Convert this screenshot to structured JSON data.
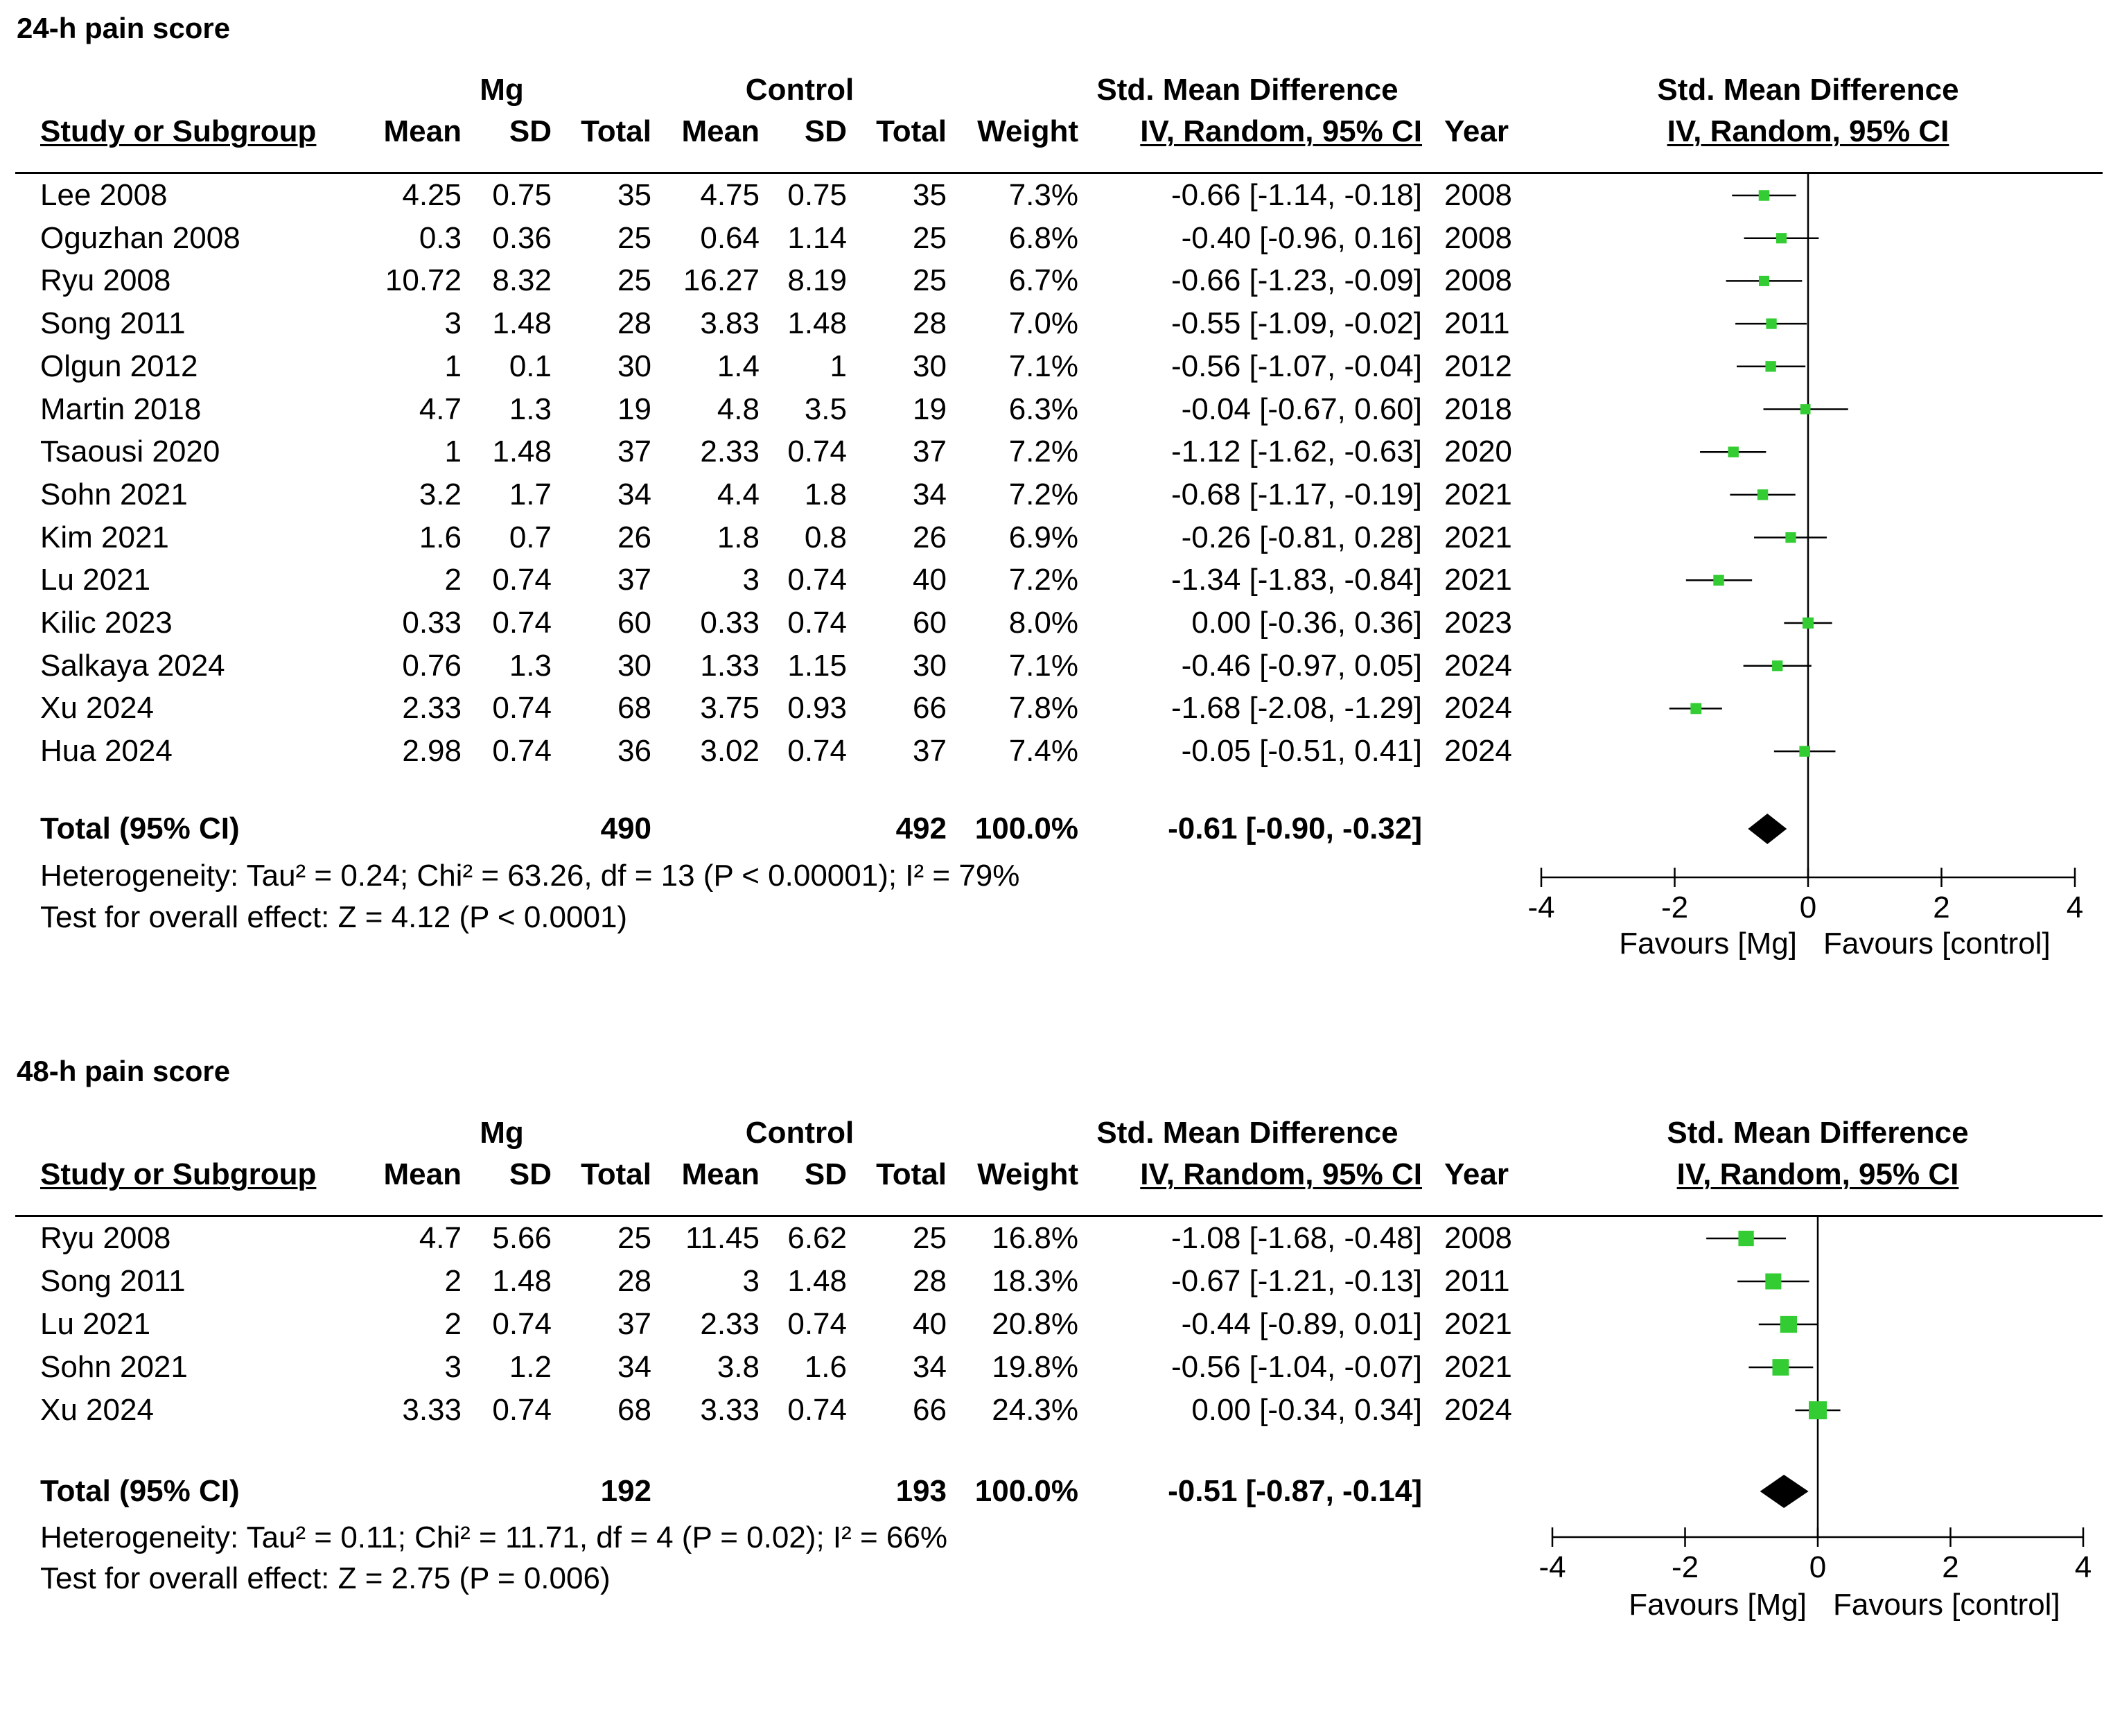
{
  "chart_data": [
    {
      "type": "forest",
      "title": "24-h pain score",
      "group_headers": {
        "experimental": "Mg",
        "control": "Control",
        "effect": "Std. Mean Difference",
        "plot": "Std. Mean Difference"
      },
      "columns": {
        "study": "Study or Subgroup",
        "mean": "Mean",
        "sd": "SD",
        "total": "Total",
        "weight": "Weight",
        "ci": "IV, Random, 95% CI",
        "year": "Year",
        "plot_method": "IV, Random, 95% CI"
      },
      "studies": [
        {
          "study": "Lee 2008",
          "mg_mean": "4.25",
          "mg_sd": "0.75",
          "mg_total": "35",
          "c_mean": "4.75",
          "c_sd": "0.75",
          "c_total": "35",
          "weight": "7.3%",
          "ci": "-0.66 [-1.14, -0.18]",
          "year": "2008",
          "est": -0.66,
          "lo": -1.14,
          "hi": -0.18,
          "w": 7.3
        },
        {
          "study": "Oguzhan 2008",
          "mg_mean": "0.3",
          "mg_sd": "0.36",
          "mg_total": "25",
          "c_mean": "0.64",
          "c_sd": "1.14",
          "c_total": "25",
          "weight": "6.8%",
          "ci": "-0.40 [-0.96, 0.16]",
          "year": "2008",
          "est": -0.4,
          "lo": -0.96,
          "hi": 0.16,
          "w": 6.8
        },
        {
          "study": "Ryu 2008",
          "mg_mean": "10.72",
          "mg_sd": "8.32",
          "mg_total": "25",
          "c_mean": "16.27",
          "c_sd": "8.19",
          "c_total": "25",
          "weight": "6.7%",
          "ci": "-0.66 [-1.23, -0.09]",
          "year": "2008",
          "est": -0.66,
          "lo": -1.23,
          "hi": -0.09,
          "w": 6.7
        },
        {
          "study": "Song 2011",
          "mg_mean": "3",
          "mg_sd": "1.48",
          "mg_total": "28",
          "c_mean": "3.83",
          "c_sd": "1.48",
          "c_total": "28",
          "weight": "7.0%",
          "ci": "-0.55 [-1.09, -0.02]",
          "year": "2011",
          "est": -0.55,
          "lo": -1.09,
          "hi": -0.02,
          "w": 7.0
        },
        {
          "study": "Olgun 2012",
          "mg_mean": "1",
          "mg_sd": "0.1",
          "mg_total": "30",
          "c_mean": "1.4",
          "c_sd": "1",
          "c_total": "30",
          "weight": "7.1%",
          "ci": "-0.56 [-1.07, -0.04]",
          "year": "2012",
          "est": -0.56,
          "lo": -1.07,
          "hi": -0.04,
          "w": 7.1
        },
        {
          "study": "Martin 2018",
          "mg_mean": "4.7",
          "mg_sd": "1.3",
          "mg_total": "19",
          "c_mean": "4.8",
          "c_sd": "3.5",
          "c_total": "19",
          "weight": "6.3%",
          "ci": "-0.04 [-0.67, 0.60]",
          "year": "2018",
          "est": -0.04,
          "lo": -0.67,
          "hi": 0.6,
          "w": 6.3
        },
        {
          "study": "Tsaousi 2020",
          "mg_mean": "1",
          "mg_sd": "1.48",
          "mg_total": "37",
          "c_mean": "2.33",
          "c_sd": "0.74",
          "c_total": "37",
          "weight": "7.2%",
          "ci": "-1.12 [-1.62, -0.63]",
          "year": "2020",
          "est": -1.12,
          "lo": -1.62,
          "hi": -0.63,
          "w": 7.2
        },
        {
          "study": "Sohn 2021",
          "mg_mean": "3.2",
          "mg_sd": "1.7",
          "mg_total": "34",
          "c_mean": "4.4",
          "c_sd": "1.8",
          "c_total": "34",
          "weight": "7.2%",
          "ci": "-0.68 [-1.17, -0.19]",
          "year": "2021",
          "est": -0.68,
          "lo": -1.17,
          "hi": -0.19,
          "w": 7.2
        },
        {
          "study": "Kim 2021",
          "mg_mean": "1.6",
          "mg_sd": "0.7",
          "mg_total": "26",
          "c_mean": "1.8",
          "c_sd": "0.8",
          "c_total": "26",
          "weight": "6.9%",
          "ci": "-0.26 [-0.81, 0.28]",
          "year": "2021",
          "est": -0.26,
          "lo": -0.81,
          "hi": 0.28,
          "w": 6.9
        },
        {
          "study": "Lu 2021",
          "mg_mean": "2",
          "mg_sd": "0.74",
          "mg_total": "37",
          "c_mean": "3",
          "c_sd": "0.74",
          "c_total": "40",
          "weight": "7.2%",
          "ci": "-1.34 [-1.83, -0.84]",
          "year": "2021",
          "est": -1.34,
          "lo": -1.83,
          "hi": -0.84,
          "w": 7.2
        },
        {
          "study": "Kilic 2023",
          "mg_mean": "0.33",
          "mg_sd": "0.74",
          "mg_total": "60",
          "c_mean": "0.33",
          "c_sd": "0.74",
          "c_total": "60",
          "weight": "8.0%",
          "ci": "0.00 [-0.36, 0.36]",
          "year": "2023",
          "est": 0.0,
          "lo": -0.36,
          "hi": 0.36,
          "w": 8.0
        },
        {
          "study": "Salkaya 2024",
          "mg_mean": "0.76",
          "mg_sd": "1.3",
          "mg_total": "30",
          "c_mean": "1.33",
          "c_sd": "1.15",
          "c_total": "30",
          "weight": "7.1%",
          "ci": "-0.46 [-0.97, 0.05]",
          "year": "2024",
          "est": -0.46,
          "lo": -0.97,
          "hi": 0.05,
          "w": 7.1
        },
        {
          "study": "Xu 2024",
          "mg_mean": "2.33",
          "mg_sd": "0.74",
          "mg_total": "68",
          "c_mean": "3.75",
          "c_sd": "0.93",
          "c_total": "66",
          "weight": "7.8%",
          "ci": "-1.68 [-2.08, -1.29]",
          "year": "2024",
          "est": -1.68,
          "lo": -2.08,
          "hi": -1.29,
          "w": 7.8
        },
        {
          "study": "Hua 2024",
          "mg_mean": "2.98",
          "mg_sd": "0.74",
          "mg_total": "36",
          "c_mean": "3.02",
          "c_sd": "0.74",
          "c_total": "37",
          "weight": "7.4%",
          "ci": "-0.05 [-0.51, 0.41]",
          "year": "2024",
          "est": -0.05,
          "lo": -0.51,
          "hi": 0.41,
          "w": 7.4
        }
      ],
      "total": {
        "label": "Total (95% CI)",
        "mg_total": "490",
        "c_total": "492",
        "weight": "100.0%",
        "ci": "-0.61 [-0.90, -0.32]",
        "est": -0.61,
        "lo": -0.9,
        "hi": -0.32
      },
      "heterogeneity": "Heterogeneity: Tau² = 0.24; Chi² = 63.26, df = 13 (P < 0.00001); I² = 79%",
      "overall_effect": "Test for overall effect: Z = 4.12 (P < 0.0001)",
      "xlim": [
        -4,
        4
      ],
      "ticks": [
        -4,
        -2,
        0,
        2,
        4
      ],
      "tick_labels": [
        "-4",
        "-2",
        "0",
        "2",
        "4"
      ],
      "favours_left": "Favours [Mg]",
      "favours_right": "Favours [control]",
      "marker_color": "#33cc33"
    },
    {
      "type": "forest",
      "title": "48-h pain score",
      "group_headers": {
        "experimental": "Mg",
        "control": "Control",
        "effect": "Std. Mean Difference",
        "plot": "Std. Mean Difference"
      },
      "columns": {
        "study": "Study or Subgroup",
        "mean": "Mean",
        "sd": "SD",
        "total": "Total",
        "weight": "Weight",
        "ci": "IV, Random, 95% CI",
        "year": "Year",
        "plot_method": "IV, Random, 95% CI"
      },
      "studies": [
        {
          "study": "Ryu 2008",
          "mg_mean": "4.7",
          "mg_sd": "5.66",
          "mg_total": "25",
          "c_mean": "11.45",
          "c_sd": "6.62",
          "c_total": "25",
          "weight": "16.8%",
          "ci": "-1.08 [-1.68, -0.48]",
          "year": "2008",
          "est": -1.08,
          "lo": -1.68,
          "hi": -0.48,
          "w": 16.8
        },
        {
          "study": "Song 2011",
          "mg_mean": "2",
          "mg_sd": "1.48",
          "mg_total": "28",
          "c_mean": "3",
          "c_sd": "1.48",
          "c_total": "28",
          "weight": "18.3%",
          "ci": "-0.67 [-1.21, -0.13]",
          "year": "2011",
          "est": -0.67,
          "lo": -1.21,
          "hi": -0.13,
          "w": 18.3
        },
        {
          "study": "Lu 2021",
          "mg_mean": "2",
          "mg_sd": "0.74",
          "mg_total": "37",
          "c_mean": "2.33",
          "c_sd": "0.74",
          "c_total": "40",
          "weight": "20.8%",
          "ci": "-0.44 [-0.89, 0.01]",
          "year": "2021",
          "est": -0.44,
          "lo": -0.89,
          "hi": 0.01,
          "w": 20.8
        },
        {
          "study": "Sohn 2021",
          "mg_mean": "3",
          "mg_sd": "1.2",
          "mg_total": "34",
          "c_mean": "3.8",
          "c_sd": "1.6",
          "c_total": "34",
          "weight": "19.8%",
          "ci": "-0.56 [-1.04, -0.07]",
          "year": "2021",
          "est": -0.56,
          "lo": -1.04,
          "hi": -0.07,
          "w": 19.8
        },
        {
          "study": "Xu 2024",
          "mg_mean": "3.33",
          "mg_sd": "0.74",
          "mg_total": "68",
          "c_mean": "3.33",
          "c_sd": "0.74",
          "c_total": "66",
          "weight": "24.3%",
          "ci": "0.00 [-0.34, 0.34]",
          "year": "2024",
          "est": 0.0,
          "lo": -0.34,
          "hi": 0.34,
          "w": 24.3
        }
      ],
      "total": {
        "label": "Total (95% CI)",
        "mg_total": "192",
        "c_total": "193",
        "weight": "100.0%",
        "ci": "-0.51 [-0.87, -0.14]",
        "est": -0.51,
        "lo": -0.87,
        "hi": -0.14
      },
      "heterogeneity": "Heterogeneity: Tau² = 0.11; Chi² = 11.71, df = 4 (P = 0.02); I² = 66%",
      "overall_effect": "Test for overall effect: Z = 2.75 (P = 0.006)",
      "xlim": [
        -4,
        4
      ],
      "ticks": [
        -4,
        -2,
        0,
        2,
        4
      ],
      "tick_labels": [
        "-4",
        "-2",
        "0",
        "2",
        "4"
      ],
      "favours_left": "Favours [Mg]",
      "favours_right": "Favours [control]",
      "marker_color": "#33cc33"
    }
  ]
}
